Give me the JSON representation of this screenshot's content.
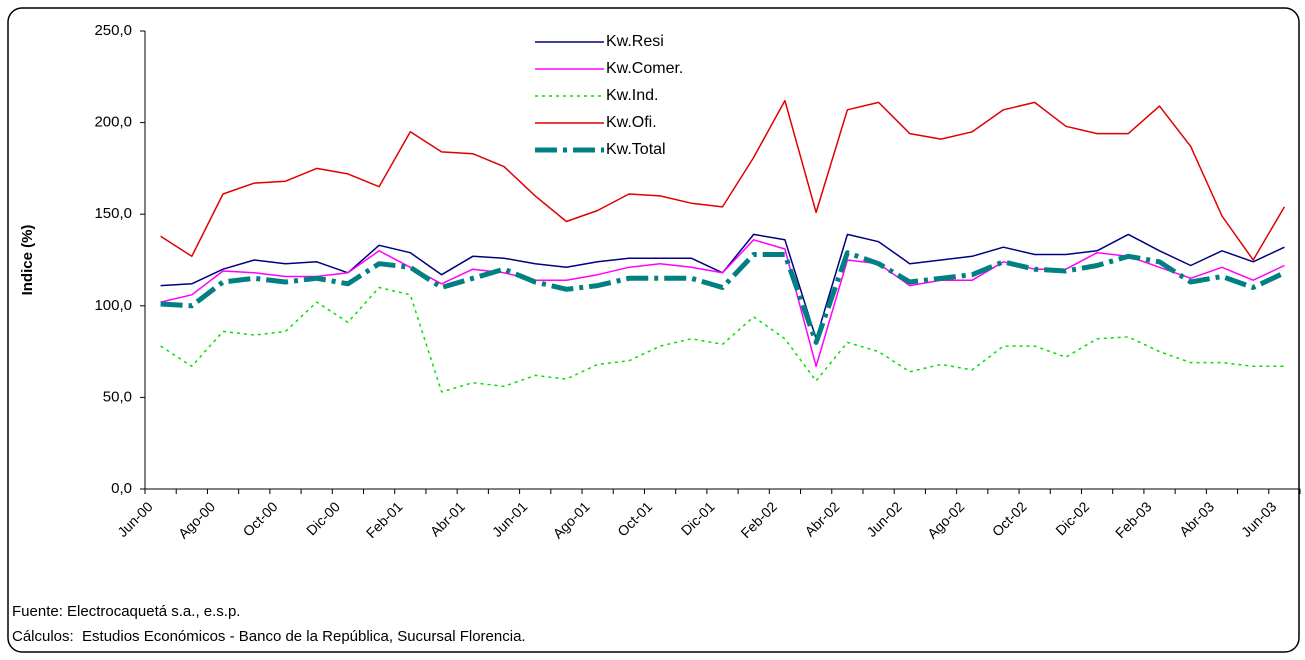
{
  "chart_data": {
    "type": "line",
    "y_label": "Indice (%)",
    "categories": [
      "Jun-00",
      null,
      "Ago-00",
      null,
      "Oct-00",
      null,
      "Dic-00",
      null,
      "Feb-01",
      null,
      "Abr-01",
      null,
      "Jun-01",
      null,
      "Ago-01",
      null,
      "Oct-01",
      null,
      "Dic-01",
      null,
      "Feb-02",
      null,
      "Abr-02",
      null,
      "Jun-02",
      null,
      "Ago-02",
      null,
      "Oct-02",
      null,
      "Dic-02",
      null,
      "Feb-03",
      null,
      "Abr-03",
      null,
      "Jun-03"
    ],
    "series": [
      {
        "name": "Kw.Resi",
        "color": "#000080",
        "line_style": "solid",
        "values": [
          111,
          112,
          120,
          125,
          123,
          124,
          118,
          133,
          129,
          117,
          127,
          126,
          123,
          121,
          124,
          126,
          126,
          126,
          118,
          139,
          136,
          82,
          139,
          135,
          123,
          125,
          127,
          132,
          128,
          128,
          130,
          139,
          130,
          122,
          130,
          124,
          132
        ]
      },
      {
        "name": "Kw.Comer.",
        "color": "#ff00ff",
        "line_style": "solid",
        "values": [
          102,
          106,
          119,
          118,
          116,
          116,
          118,
          130,
          121,
          112,
          120,
          118,
          114,
          114,
          117,
          121,
          123,
          121,
          118,
          136,
          131,
          67,
          125,
          123,
          111,
          114,
          114,
          124,
          120,
          120,
          129,
          127,
          121,
          115,
          121,
          114,
          122
        ]
      },
      {
        "name": "Kw.Ind.",
        "color": "#00e000",
        "line_style": "dotted",
        "values": [
          78,
          67,
          86,
          84,
          86,
          102,
          91,
          110,
          106,
          53,
          58,
          56,
          62,
          60,
          68,
          70,
          78,
          82,
          79,
          94,
          82,
          59,
          80,
          75,
          64,
          68,
          65,
          78,
          78,
          72,
          82,
          83,
          75,
          69,
          69,
          67,
          67
        ]
      },
      {
        "name": "Kw.Ofi.",
        "color": "#e00000",
        "line_style": "solid",
        "values": [
          138,
          127,
          161,
          167,
          168,
          175,
          172,
          165,
          195,
          184,
          183,
          176,
          160,
          146,
          152,
          161,
          160,
          156,
          154,
          181,
          212,
          151,
          207,
          211,
          194,
          191,
          195,
          207,
          211,
          198,
          194,
          194,
          209,
          187,
          149,
          125,
          154
        ]
      },
      {
        "name": "Kw.Total",
        "color": "#008080",
        "line_style": "dashed",
        "values": [
          101,
          100,
          113,
          115,
          113,
          115,
          112,
          123,
          121,
          110,
          115,
          120,
          113,
          109,
          111,
          115,
          115,
          115,
          110,
          128,
          128,
          80,
          129,
          123,
          113,
          115,
          117,
          124,
          120,
          119,
          122,
          127,
          124,
          113,
          116,
          110,
          118
        ]
      }
    ],
    "ylim": [
      0,
      250
    ],
    "yticks": [
      {
        "value": 0,
        "label": "0,0"
      },
      {
        "value": 50,
        "label": "50,0"
      },
      {
        "value": 100,
        "label": "100,0"
      },
      {
        "value": 150,
        "label": "150,0"
      },
      {
        "value": 200,
        "label": "200,0"
      },
      {
        "value": 250,
        "label": "250,0"
      }
    ],
    "grid": false,
    "notes": [
      "Fuente: Electrocaquetá s.a., e.s.p.",
      "Cálculos:  Estudios Económicos - Banco de la República, Sucursal Florencia."
    ]
  }
}
